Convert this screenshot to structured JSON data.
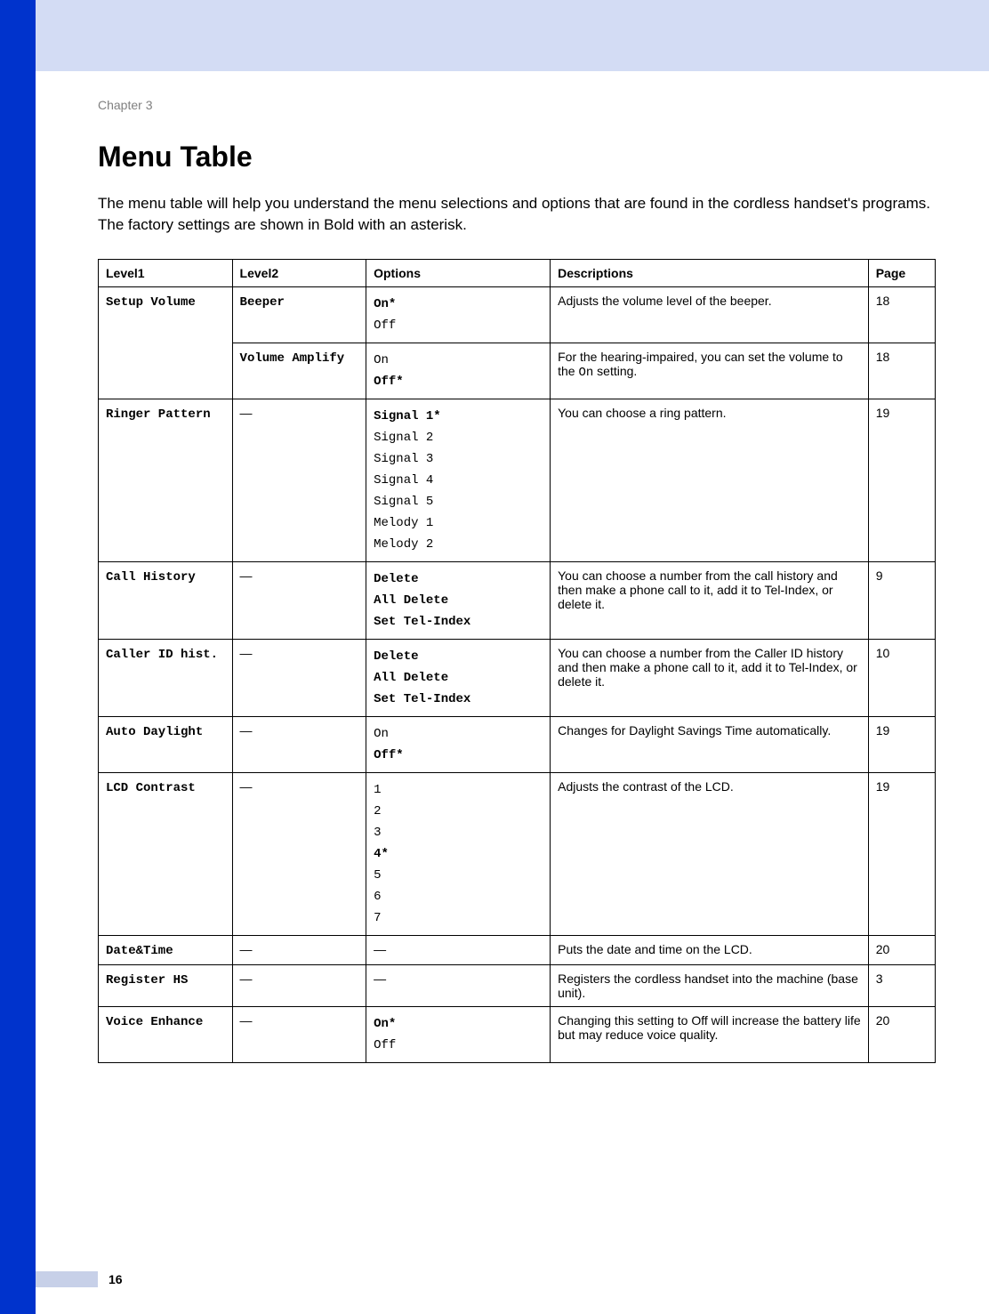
{
  "chapter_label": "Chapter 3",
  "title": "Menu Table",
  "intro": "The menu table will help you understand the menu selections and options that are found in the cordless handset's programs. The factory settings are shown in Bold with an asterisk.",
  "headers": {
    "level1": "Level1",
    "level2": "Level2",
    "options": "Options",
    "descriptions": "Descriptions",
    "page": "Page"
  },
  "rows": [
    {
      "level1": "Setup Volume",
      "level1_rowspan": 2,
      "level2": "Beeper",
      "options": [
        {
          "text": "On*",
          "bold": true
        },
        {
          "text": "Off",
          "bold": false
        }
      ],
      "desc_plain": "Adjusts the volume level of the beeper.",
      "page": "18"
    },
    {
      "level2": "Volume Amplify",
      "options": [
        {
          "text": "On",
          "bold": false
        },
        {
          "text": "Off*",
          "bold": true
        }
      ],
      "desc_html": "For the hearing-impaired, you can set the volume to the <mono>On</mono> setting.",
      "page": "18"
    },
    {
      "level1": "Ringer Pattern",
      "level2_dash": true,
      "options": [
        {
          "text": "Signal 1*",
          "bold": true
        },
        {
          "text": "Signal 2",
          "bold": false
        },
        {
          "text": "Signal 3",
          "bold": false
        },
        {
          "text": "Signal 4",
          "bold": false
        },
        {
          "text": "Signal 5",
          "bold": false
        },
        {
          "text": "Melody 1",
          "bold": false
        },
        {
          "text": "Melody 2",
          "bold": false
        }
      ],
      "desc_plain": "You can choose a ring pattern.",
      "page": "19"
    },
    {
      "level1": "Call History",
      "level2_dash": true,
      "options": [
        {
          "text": "Delete",
          "bold": true
        },
        {
          "text": "All Delete",
          "bold": true
        },
        {
          "text": "Set Tel-Index",
          "bold": true
        }
      ],
      "desc_plain": "You can choose a number from the call history and then make a phone call to it, add it to Tel-Index, or delete it.",
      "page": "9"
    },
    {
      "level1": "Caller ID hist.",
      "level2_dash": true,
      "options": [
        {
          "text": "Delete",
          "bold": true
        },
        {
          "text": "All Delete",
          "bold": true
        },
        {
          "text": "Set Tel-Index",
          "bold": true
        }
      ],
      "desc_plain": "You can choose a number from the Caller ID history and then make a phone call to it, add it to Tel-Index, or delete it.",
      "page": "10"
    },
    {
      "level1": "Auto Daylight",
      "level2_dash": true,
      "options": [
        {
          "text": "On",
          "bold": false
        },
        {
          "text": "Off*",
          "bold": true
        }
      ],
      "desc_plain": "Changes for Daylight Savings Time automatically.",
      "page": "19"
    },
    {
      "level1": "LCD Contrast",
      "level2_dash": true,
      "options": [
        {
          "text": "1",
          "bold": false
        },
        {
          "text": "2",
          "bold": false
        },
        {
          "text": "3",
          "bold": false
        },
        {
          "text": "4*",
          "bold": true
        },
        {
          "text": "5",
          "bold": false
        },
        {
          "text": "6",
          "bold": false
        },
        {
          "text": "7",
          "bold": false
        }
      ],
      "desc_plain": "Adjusts the contrast of the LCD.",
      "page": "19"
    },
    {
      "level1": "Date&Time",
      "level2_dash": true,
      "options_dash": true,
      "desc_plain": "Puts the date and time on the LCD.",
      "page": "20"
    },
    {
      "level1": "Register HS",
      "level2_dash": true,
      "options_dash": true,
      "desc_plain": "Registers the cordless handset into the machine (base unit).",
      "page": "3"
    },
    {
      "level1": "Voice Enhance",
      "level2_dash": true,
      "options": [
        {
          "text": "On*",
          "bold": true
        },
        {
          "text": "Off",
          "bold": false
        }
      ],
      "desc_plain": "Changing this setting to Off will increase the battery life but may reduce voice quality.",
      "page": "20"
    }
  ],
  "footer_page": "16",
  "colors": {
    "sidebar": "#0033cc",
    "topband": "#d3dcf4",
    "footer_grey": "#c7d0e8",
    "text": "#000000",
    "chapter_grey": "#808080"
  }
}
